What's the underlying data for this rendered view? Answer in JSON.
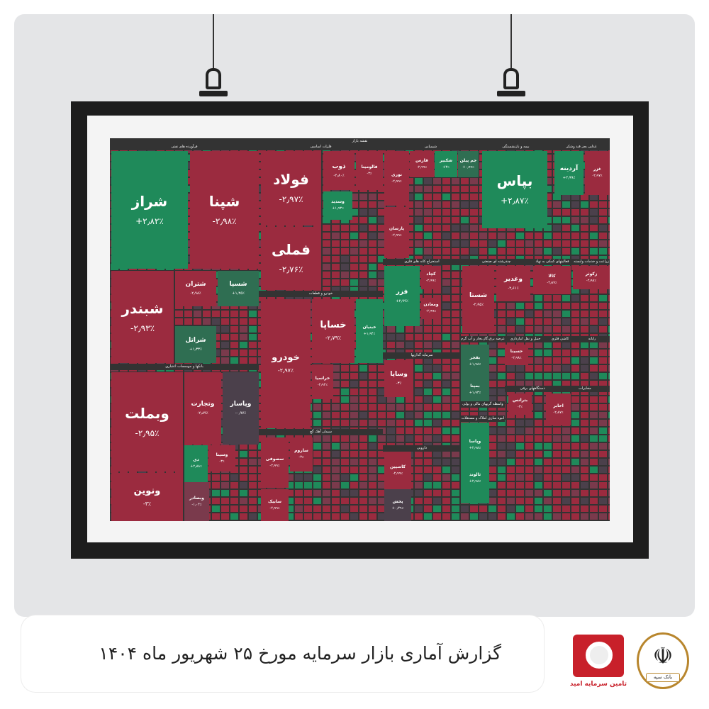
{
  "footer": {
    "title": "گزارش آماری بازار سرمایه مورخ ۲۵ شهریور ماه ۱۴۰۴",
    "logo_text": "تامین سرمایه امید",
    "bank_logo_text": "بانک سپه"
  },
  "colors": {
    "up": "#1f8a5a",
    "up_weak": "#2f6e52",
    "down": "#9b2b3f",
    "down_weak": "#7a3a4c",
    "flat": "#4b404b",
    "header": "#333333"
  },
  "chart_data": {
    "type": "treemap",
    "title": "نقشه بازار",
    "sectors": [
      "فرآورده های نفتی",
      "فلزات اساسی",
      "شیمیایی",
      "بیمه و بازنشستگی",
      "غذایی بجز قند وشکر",
      "بانکها و موسسات اعتباری",
      "خودرو و قطعات",
      "سیمان آهک گچ",
      "استخراج کانه های فلزی",
      "چندرشته ای صنعتی",
      "فعالیتهای کمکی به نهاد",
      "زراعت و خدمات وابسته",
      "سرمایه گذاریها",
      "دارویی",
      "عرضه برق،گاز،بخار و آب گرم",
      "حمل و نقل انبارداری",
      "کاشی فلزی",
      "رایانه",
      "واسطه گریهای مالی و پولی",
      "دستگاههای برقی",
      "مخابرات",
      "انبوه سازی املاک و مستغلات"
    ],
    "tiles": [
      {
        "symbol": "شراز",
        "change": "+۲٫۸۲٪",
        "color": "up"
      },
      {
        "symbol": "شپنا",
        "change": "-۲٫۹۸٪",
        "color": "down"
      },
      {
        "symbol": "شبندر",
        "change": "-۲٫۹۳٪",
        "color": "down"
      },
      {
        "symbol": "شتران",
        "change": "-۲٫۹۸٪",
        "color": "down"
      },
      {
        "symbol": "شسپا",
        "change": "+۱٫۴۵٪",
        "color": "up_weak"
      },
      {
        "symbol": "شراتل",
        "change": "+۱٫۳۳٪",
        "color": "up_weak"
      },
      {
        "symbol": "وبملت",
        "change": "-۲٫۹۵٪",
        "color": "down"
      },
      {
        "symbol": "ونوین",
        "change": "-۳٪",
        "color": "down"
      },
      {
        "symbol": "وتجارت",
        "change": "-۲٫۸۹٪",
        "color": "down"
      },
      {
        "symbol": "وپاسار",
        "change": "-۰٫۹۷٪",
        "color": "flat"
      },
      {
        "symbol": "دی",
        "change": "+۲٫۸۸٪",
        "color": "up"
      },
      {
        "symbol": "وسینا",
        "change": "-۳٪",
        "color": "down"
      },
      {
        "symbol": "فولاد",
        "change": "-۲٫۹۷٪",
        "color": "down"
      },
      {
        "symbol": "فملی",
        "change": "-۲٫۷۶٪",
        "color": "down"
      },
      {
        "symbol": "ذوب",
        "change": "-۲٫۸۰٪",
        "color": "down"
      },
      {
        "symbol": "فالومینا",
        "change": "-۳٪",
        "color": "down"
      },
      {
        "symbol": "وسدید",
        "change": "+۱٫۹۳٪",
        "color": "up"
      },
      {
        "symbol": "خودرو",
        "change": "-۲٫۹۷٪",
        "color": "down"
      },
      {
        "symbol": "خساپا",
        "change": "-۲٫۷۹٪",
        "color": "down"
      },
      {
        "symbol": "خبنیان",
        "change": "+۱٫۹۴٪",
        "color": "up"
      },
      {
        "symbol": "خراسیا",
        "change": "-۲٫۹۲٪",
        "color": "down"
      },
      {
        "symbol": "سصوفی",
        "change": "-۲٫۹۹٪",
        "color": "down"
      },
      {
        "symbol": "ساروم",
        "change": "-۳٪",
        "color": "down"
      },
      {
        "symbol": "سابیک",
        "change": "-۲٫۹۹٪",
        "color": "down"
      },
      {
        "symbol": "نوری",
        "change": "-۲٫۹۹٪",
        "color": "down"
      },
      {
        "symbol": "پارسان",
        "change": "-۲٫۹۹٪",
        "color": "down"
      },
      {
        "symbol": "فارس",
        "change": "-۲٫۹۹٪",
        "color": "down"
      },
      {
        "symbol": "شکبیر",
        "change": "+۳٪",
        "color": "up"
      },
      {
        "symbol": "جم پیلن",
        "change": "+۰٫۹۹٪",
        "color": "up_weak"
      },
      {
        "symbol": "بپاس",
        "change": "+۲٫۸۷٪",
        "color": "up"
      },
      {
        "symbol": "آردینه",
        "change": "+۲٫۹۹٪",
        "color": "up"
      },
      {
        "symbol": "غزر",
        "change": "-۲٫۹۷٪",
        "color": "down"
      },
      {
        "symbol": "فزر",
        "change": "+۲٫۹۹٪",
        "color": "up"
      },
      {
        "symbol": "شستا",
        "change": "-۲٫۹۵٪",
        "color": "down"
      },
      {
        "symbol": "وغدیر",
        "change": "-۲٫۶۱٪",
        "color": "down"
      },
      {
        "symbol": "کالا",
        "change": "-۲٫۸۷٪",
        "color": "down"
      },
      {
        "symbol": "زکوثر",
        "change": "-۲٫۹۸٪",
        "color": "down"
      },
      {
        "symbol": "وساپا",
        "change": "-۳٪",
        "color": "down"
      },
      {
        "symbol": "کاسپین",
        "change": "-۲٫۹۹٪",
        "color": "down"
      },
      {
        "symbol": "پخش",
        "change": "+۰٫۳۹٪",
        "color": "flat"
      },
      {
        "symbol": "وپاسا",
        "change": "+۲٫۹۸٪",
        "color": "up"
      },
      {
        "symbol": "ثالوند",
        "change": "+۲٫۹۸٪",
        "color": "up"
      },
      {
        "symbol": "بترانس",
        "change": "-۳٪",
        "color": "down"
      },
      {
        "symbol": "اخابر",
        "change": "-۲٫۸۷٪",
        "color": "down"
      },
      {
        "symbol": "بفجر",
        "change": "+۱٫۹۸٪",
        "color": "up_weak"
      },
      {
        "symbol": "بمپنا",
        "change": "+۱٫۹۳٪",
        "color": "up_weak"
      },
      {
        "symbol": "حسینا",
        "change": "-۲٫۹۸٪",
        "color": "down"
      },
      {
        "symbol": "ومعادن",
        "change": "-۲٫۹۹٪",
        "color": "down"
      },
      {
        "symbol": "کچاد",
        "change": "-۲٫۹۹٪",
        "color": "down"
      },
      {
        "symbol": "وبصادر",
        "change": "-۱٫۰۴٪",
        "color": "down_weak"
      }
    ]
  }
}
